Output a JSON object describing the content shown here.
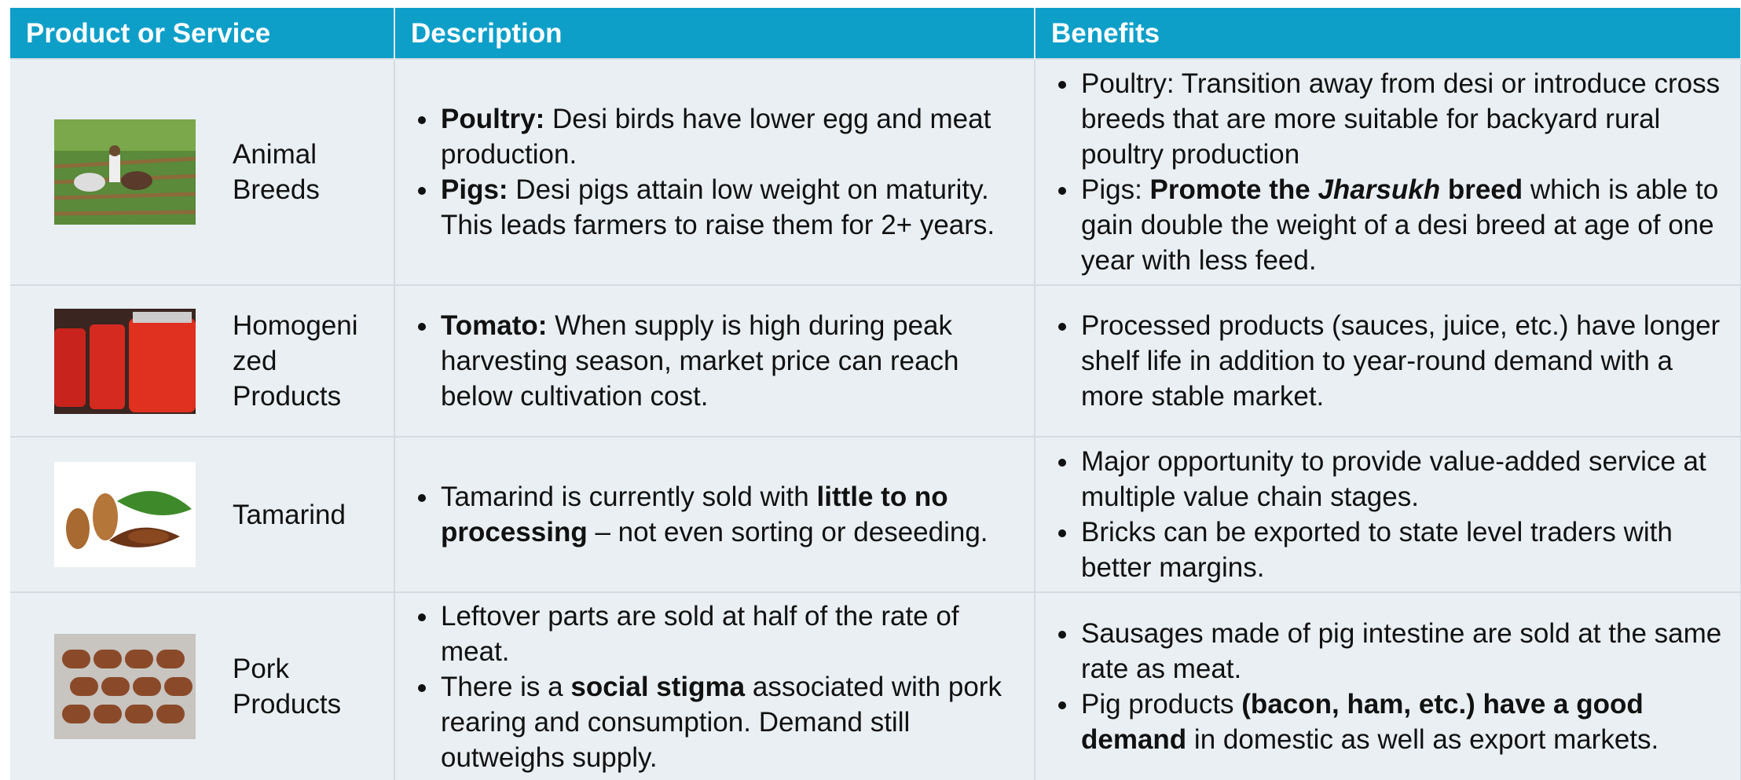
{
  "table": {
    "headers": [
      "Product or Service",
      "Description",
      "Benefits"
    ],
    "rows": [
      {
        "product": "Animal Breeds",
        "description": [
          [
            {
              "bold": "Poultry:"
            },
            {
              "text": " Desi birds have lower egg and meat production."
            }
          ],
          [
            {
              "bold": "Pigs:"
            },
            {
              "text": " Desi pigs attain low weight on maturity. This leads farmers to raise them for 2+ years."
            }
          ]
        ],
        "benefits": [
          [
            {
              "text": "Poultry: Transition away from desi or introduce cross breeds that are more suitable for backyard rural poultry production"
            }
          ],
          [
            {
              "text": "Pigs: "
            },
            {
              "bold": "Promote the "
            },
            {
              "bold_italic": "Jharsukh"
            },
            {
              "bold": " breed"
            },
            {
              "text": " which is able to gain double the weight of a desi breed at age of one year with less feed."
            }
          ]
        ]
      },
      {
        "product": "Homogenized Products",
        "description": [
          [
            {
              "bold": "Tomato:"
            },
            {
              "text": " When supply is high during peak harvesting season, market price can reach below cultivation cost."
            }
          ]
        ],
        "benefits": [
          [
            {
              "text": "Processed products (sauces, juice, etc.) have longer shelf life in addition to year-round demand with a more stable market."
            }
          ]
        ]
      },
      {
        "product": "Tamarind",
        "description": [
          [
            {
              "text": "Tamarind is currently sold with "
            },
            {
              "bold": "little to no processing"
            },
            {
              "text": " – not even sorting or deseeding."
            }
          ]
        ],
        "benefits": [
          [
            {
              "text": "Major opportunity to provide value-added service at multiple value chain stages."
            }
          ],
          [
            {
              "text": "Bricks can be exported to state level traders with better margins."
            }
          ]
        ]
      },
      {
        "product": "Pork Products",
        "description": [
          [
            {
              "text": "Leftover parts are sold at half of the rate of meat."
            }
          ],
          [
            {
              "text": "There is a "
            },
            {
              "bold": "social stigma"
            },
            {
              "text": " associated with pork rearing and consumption. Demand still outweighs supply."
            }
          ]
        ],
        "benefits": [
          [
            {
              "text": "Sausages made of pig intestine are sold at the same rate as meat."
            }
          ],
          [
            {
              "text": "Pig products "
            },
            {
              "bold": "(bacon, ham, etc.) have a good demand"
            },
            {
              "text": " in domestic as well as export markets."
            }
          ]
        ]
      }
    ]
  }
}
